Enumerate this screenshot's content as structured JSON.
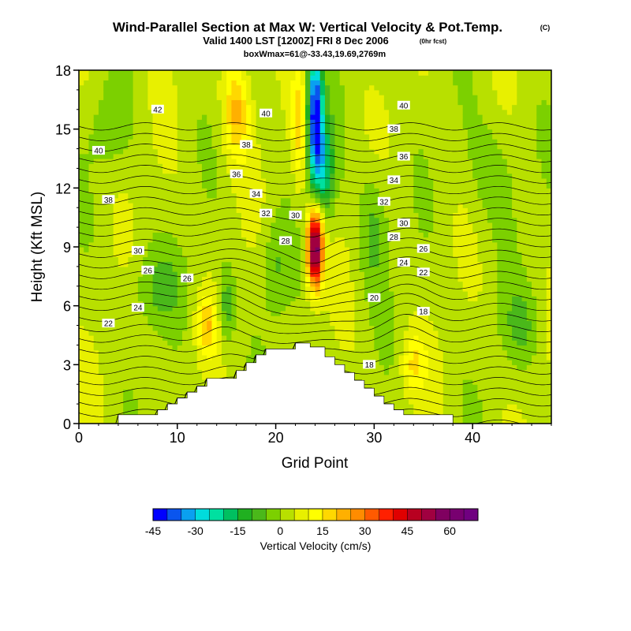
{
  "title": {
    "main": "Wind-Parallel Section at Max W: Vertical Velocity & Pot.Temp.",
    "copyright": "(C)",
    "valid": "Valid 1400 LST [1200Z] FRI 8 Dec 2006",
    "fcst_note": "(0hr fcst)",
    "box": "boxWmax=61@-33.43,19.69,2769m"
  },
  "chart_data": {
    "type": "heatmap",
    "xlabel": "Grid Point",
    "ylabel": "Height (Kft MSL)",
    "xlim": [
      0,
      48
    ],
    "ylim": [
      0,
      18
    ],
    "xticks": [
      0,
      10,
      20,
      30,
      40
    ],
    "yticks": [
      0,
      3,
      6,
      9,
      12,
      15,
      18
    ],
    "colorbar": {
      "label": "Vertical Velocity (cm/s)",
      "min": -45,
      "max": 70,
      "step": 5,
      "tick_labels": [
        "-45",
        "-30",
        "-15",
        "0",
        "15",
        "30",
        "45",
        "60"
      ],
      "tick_values": [
        -45,
        -30,
        -15,
        0,
        15,
        30,
        45,
        60
      ],
      "colors": [
        "#0000ff",
        "#0a55ee",
        "#0aa0f0",
        "#00dcdc",
        "#00e0a0",
        "#00c060",
        "#20b020",
        "#4ab81a",
        "#7cd000",
        "#b8e000",
        "#e8f000",
        "#ffff00",
        "#ffd800",
        "#ffb000",
        "#ff8c00",
        "#ff5a00",
        "#ff2000",
        "#e00000",
        "#b80020",
        "#a00040",
        "#800060",
        "#780070",
        "#700080"
      ]
    },
    "terrain_profile": [
      [
        0,
        0
      ],
      [
        4,
        0
      ],
      [
        4,
        0.45
      ],
      [
        8,
        0.45
      ],
      [
        8,
        0.7
      ],
      [
        9,
        0.7
      ],
      [
        9,
        1.0
      ],
      [
        10,
        1.0
      ],
      [
        10,
        1.3
      ],
      [
        11,
        1.3
      ],
      [
        11,
        1.6
      ],
      [
        12,
        1.6
      ],
      [
        12,
        1.9
      ],
      [
        13,
        1.9
      ],
      [
        13,
        2.3
      ],
      [
        16,
        2.3
      ],
      [
        16,
        2.7
      ],
      [
        17,
        2.7
      ],
      [
        17,
        3.1
      ],
      [
        18,
        3.1
      ],
      [
        18,
        3.5
      ],
      [
        19,
        3.5
      ],
      [
        19,
        3.8
      ],
      [
        22,
        3.8
      ],
      [
        22,
        4.1
      ],
      [
        23.5,
        4.1
      ],
      [
        23.5,
        3.9
      ],
      [
        25,
        3.9
      ],
      [
        25,
        3.4
      ],
      [
        26,
        3.4
      ],
      [
        26,
        3.0
      ],
      [
        27,
        3.0
      ],
      [
        27,
        2.6
      ],
      [
        28,
        2.6
      ],
      [
        28,
        2.2
      ],
      [
        29,
        2.2
      ],
      [
        29,
        1.8
      ],
      [
        30,
        1.8
      ],
      [
        30,
        1.4
      ],
      [
        31,
        1.4
      ],
      [
        31,
        1.0
      ],
      [
        32,
        1.0
      ],
      [
        32,
        0.7
      ],
      [
        33,
        0.7
      ],
      [
        33,
        0.45
      ],
      [
        38,
        0.45
      ],
      [
        38,
        0
      ],
      [
        48,
        0
      ]
    ],
    "w_features": [
      {
        "x": 24.0,
        "y": 9.0,
        "sx": 0.8,
        "sy": 2.0,
        "w": 60
      },
      {
        "x": 24.0,
        "y": 16.0,
        "sx": 0.8,
        "sy": 3.0,
        "w": -45
      },
      {
        "x": 24.7,
        "y": 13.0,
        "sx": 1.2,
        "sy": 2.5,
        "w": -25
      },
      {
        "x": 16.0,
        "y": 16.0,
        "sx": 1.3,
        "sy": 2.5,
        "w": 18
      },
      {
        "x": 22.5,
        "y": 15.0,
        "sx": 0.8,
        "sy": 3.0,
        "w": 15
      },
      {
        "x": 13.0,
        "y": 5.0,
        "sx": 1.0,
        "sy": 1.5,
        "w": 15
      },
      {
        "x": 34.0,
        "y": 3.0,
        "sx": 1.2,
        "sy": 1.5,
        "w": 12
      },
      {
        "x": 15.0,
        "y": 6.0,
        "sx": 0.8,
        "sy": 2.0,
        "w": -12
      },
      {
        "x": 8.0,
        "y": 7.0,
        "sx": 3.0,
        "sy": 2.0,
        "w": -8
      },
      {
        "x": 30.0,
        "y": 10.0,
        "sx": 1.5,
        "sy": 3.0,
        "w": -10
      },
      {
        "x": 42.0,
        "y": 13.0,
        "sx": 3.0,
        "sy": 3.0,
        "w": -6
      },
      {
        "x": 45.0,
        "y": 5.0,
        "sx": 2.0,
        "sy": 2.0,
        "w": -8
      },
      {
        "x": 3.0,
        "y": 15.0,
        "sx": 2.0,
        "sy": 2.0,
        "w": -6
      },
      {
        "x": 20.0,
        "y": 8.0,
        "sx": 1.5,
        "sy": 2.5,
        "w": -8
      }
    ],
    "theta_contours": {
      "min": 15,
      "max": 44,
      "step": 1,
      "labels": [
        {
          "text": "42",
          "x": 8.0,
          "y": 16.0
        },
        {
          "text": "40",
          "x": 19.0,
          "y": 15.8
        },
        {
          "text": "40",
          "x": 2.0,
          "y": 13.9
        },
        {
          "text": "40",
          "x": 33.0,
          "y": 16.2
        },
        {
          "text": "38",
          "x": 17.0,
          "y": 14.2
        },
        {
          "text": "38",
          "x": 32.0,
          "y": 15.0
        },
        {
          "text": "36",
          "x": 16.0,
          "y": 12.7
        },
        {
          "text": "36",
          "x": 33.0,
          "y": 13.6
        },
        {
          "text": "34",
          "x": 18.0,
          "y": 11.7
        },
        {
          "text": "34",
          "x": 32.0,
          "y": 12.4
        },
        {
          "text": "32",
          "x": 19.0,
          "y": 10.7
        },
        {
          "text": "32",
          "x": 31.0,
          "y": 11.3
        },
        {
          "text": "38",
          "x": 3.0,
          "y": 11.4
        },
        {
          "text": "30",
          "x": 22.0,
          "y": 10.6
        },
        {
          "text": "30",
          "x": 33.0,
          "y": 10.2
        },
        {
          "text": "28",
          "x": 21.0,
          "y": 9.3
        },
        {
          "text": "28",
          "x": 32.0,
          "y": 9.5
        },
        {
          "text": "30",
          "x": 6.0,
          "y": 8.8
        },
        {
          "text": "26",
          "x": 7.0,
          "y": 7.8
        },
        {
          "text": "26",
          "x": 11.0,
          "y": 7.4
        },
        {
          "text": "26",
          "x": 35.0,
          "y": 8.9
        },
        {
          "text": "24",
          "x": 33.0,
          "y": 8.2
        },
        {
          "text": "22",
          "x": 35.0,
          "y": 7.7
        },
        {
          "text": "24",
          "x": 6.0,
          "y": 5.9
        },
        {
          "text": "22",
          "x": 3.0,
          "y": 5.1
        },
        {
          "text": "20",
          "x": 30.0,
          "y": 6.4
        },
        {
          "text": "18",
          "x": 35.0,
          "y": 5.7
        },
        {
          "text": "18",
          "x": 29.5,
          "y": 3.0
        }
      ]
    }
  }
}
